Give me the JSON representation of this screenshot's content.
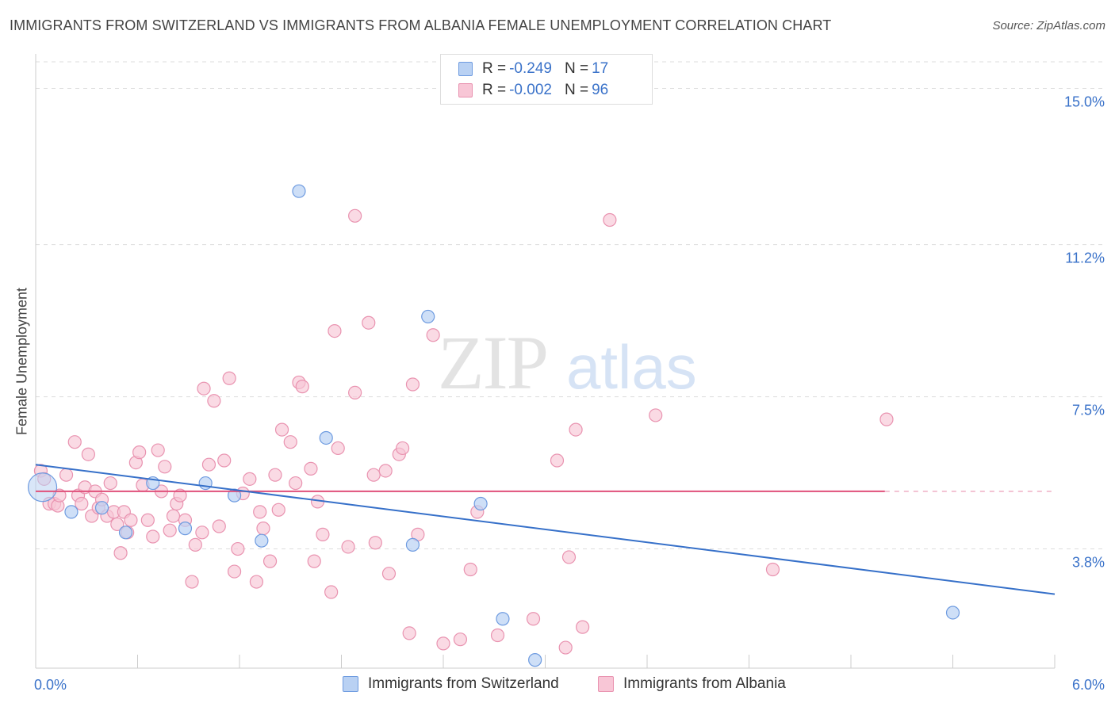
{
  "title": "IMMIGRANTS FROM SWITZERLAND VS IMMIGRANTS FROM ALBANIA FEMALE UNEMPLOYMENT CORRELATION CHART",
  "source": "Source: ZipAtlas.com",
  "watermark": {
    "zip": "ZIP",
    "atlas": "atlas"
  },
  "legend": {
    "series1": {
      "r_label": "R =",
      "r_value": "-0.249",
      "n_label": "N =",
      "n_value": "17"
    },
    "series2": {
      "r_label": "R =",
      "r_value": "-0.002",
      "n_label": "N =",
      "n_value": "96"
    }
  },
  "colors": {
    "switzerland_fill": "#b9d1f3",
    "switzerland_stroke": "#6e9be0",
    "switzerland_line": "#3670c9",
    "albania_fill": "#f8c6d6",
    "albania_stroke": "#e993b0",
    "albania_line": "#e0507a",
    "tick_label": "#3a72c9",
    "grid": "#dddddd"
  },
  "chart_data": {
    "type": "scatter",
    "title": "IMMIGRANTS FROM SWITZERLAND VS IMMIGRANTS FROM ALBANIA FEMALE UNEMPLOYMENT CORRELATION CHART",
    "xlabel": "",
    "ylabel": "Female Unemployment",
    "xlim": [
      0,
      6
    ],
    "ylim": [
      0.9,
      15.8
    ],
    "x_tick_labels": [
      {
        "value": 0,
        "label": "0.0%"
      },
      {
        "value": 6,
        "label": "6.0%"
      }
    ],
    "y_ticks": [
      {
        "value": 3.8,
        "label": "3.8%"
      },
      {
        "value": 7.5,
        "label": "7.5%"
      },
      {
        "value": 11.2,
        "label": "11.2%"
      },
      {
        "value": 15.0,
        "label": "15.0%"
      }
    ],
    "x_minor_ticks": [
      0.6,
      1.2,
      1.8,
      2.4,
      3.0,
      3.6,
      4.2,
      4.8,
      5.4,
      6.0
    ],
    "grid": true,
    "series": [
      {
        "name": "Immigrants from Switzerland",
        "r": -0.249,
        "n": 17,
        "trend": {
          "x": [
            0,
            6
          ],
          "y": [
            5.85,
            2.7
          ]
        },
        "points": [
          {
            "x": 0.04,
            "y": 5.3,
            "big": true
          },
          {
            "x": 0.21,
            "y": 4.7
          },
          {
            "x": 0.39,
            "y": 4.8
          },
          {
            "x": 0.53,
            "y": 4.2
          },
          {
            "x": 0.69,
            "y": 5.4
          },
          {
            "x": 0.88,
            "y": 4.3
          },
          {
            "x": 1.0,
            "y": 5.4
          },
          {
            "x": 1.17,
            "y": 5.1
          },
          {
            "x": 1.33,
            "y": 4.0
          },
          {
            "x": 1.55,
            "y": 12.5
          },
          {
            "x": 1.71,
            "y": 6.5
          },
          {
            "x": 2.22,
            "y": 3.9
          },
          {
            "x": 2.31,
            "y": 9.45
          },
          {
            "x": 2.62,
            "y": 4.9
          },
          {
            "x": 2.75,
            "y": 2.1
          },
          {
            "x": 2.94,
            "y": 1.1
          },
          {
            "x": 5.4,
            "y": 2.25
          }
        ]
      },
      {
        "name": "Immigrants from Albania",
        "r": -0.002,
        "n": 96,
        "trend": {
          "x": [
            0,
            5.0
          ],
          "y": [
            5.2,
            5.2
          ]
        },
        "dashed_extension": {
          "x": [
            5.0,
            6.0
          ],
          "y": [
            5.2,
            5.2
          ]
        },
        "points": [
          {
            "x": 0.03,
            "y": 5.7
          },
          {
            "x": 0.05,
            "y": 5.5
          },
          {
            "x": 0.08,
            "y": 4.9
          },
          {
            "x": 0.11,
            "y": 4.9
          },
          {
            "x": 0.13,
            "y": 4.85
          },
          {
            "x": 0.14,
            "y": 5.1
          },
          {
            "x": 0.18,
            "y": 5.6
          },
          {
            "x": 0.23,
            "y": 6.4
          },
          {
            "x": 0.25,
            "y": 5.1
          },
          {
            "x": 0.27,
            "y": 4.9
          },
          {
            "x": 0.29,
            "y": 5.3
          },
          {
            "x": 0.31,
            "y": 6.1
          },
          {
            "x": 0.33,
            "y": 4.6
          },
          {
            "x": 0.35,
            "y": 5.2
          },
          {
            "x": 0.37,
            "y": 4.8
          },
          {
            "x": 0.39,
            "y": 5.0
          },
          {
            "x": 0.42,
            "y": 4.6
          },
          {
            "x": 0.44,
            "y": 5.4
          },
          {
            "x": 0.46,
            "y": 4.7
          },
          {
            "x": 0.48,
            "y": 4.4
          },
          {
            "x": 0.5,
            "y": 3.7
          },
          {
            "x": 0.52,
            "y": 4.7
          },
          {
            "x": 0.54,
            "y": 4.2
          },
          {
            "x": 0.56,
            "y": 4.5
          },
          {
            "x": 0.59,
            "y": 5.9
          },
          {
            "x": 0.61,
            "y": 6.15
          },
          {
            "x": 0.63,
            "y": 5.35
          },
          {
            "x": 0.66,
            "y": 4.5
          },
          {
            "x": 0.69,
            "y": 4.1
          },
          {
            "x": 0.72,
            "y": 6.2
          },
          {
            "x": 0.74,
            "y": 5.2
          },
          {
            "x": 0.76,
            "y": 5.8
          },
          {
            "x": 0.79,
            "y": 4.25
          },
          {
            "x": 0.81,
            "y": 4.6
          },
          {
            "x": 0.83,
            "y": 4.9
          },
          {
            "x": 0.85,
            "y": 5.1
          },
          {
            "x": 0.88,
            "y": 4.5
          },
          {
            "x": 0.92,
            "y": 3.0
          },
          {
            "x": 0.94,
            "y": 3.9
          },
          {
            "x": 0.98,
            "y": 4.2
          },
          {
            "x": 0.99,
            "y": 7.7
          },
          {
            "x": 1.02,
            "y": 5.85
          },
          {
            "x": 1.05,
            "y": 7.4
          },
          {
            "x": 1.08,
            "y": 4.35
          },
          {
            "x": 1.11,
            "y": 5.95
          },
          {
            "x": 1.14,
            "y": 7.95
          },
          {
            "x": 1.17,
            "y": 3.25
          },
          {
            "x": 1.19,
            "y": 3.8
          },
          {
            "x": 1.22,
            "y": 5.15
          },
          {
            "x": 1.26,
            "y": 5.5
          },
          {
            "x": 1.3,
            "y": 3.0
          },
          {
            "x": 1.32,
            "y": 4.7
          },
          {
            "x": 1.34,
            "y": 4.3
          },
          {
            "x": 1.38,
            "y": 3.5
          },
          {
            "x": 1.41,
            "y": 5.6
          },
          {
            "x": 1.43,
            "y": 4.75
          },
          {
            "x": 1.45,
            "y": 6.7
          },
          {
            "x": 1.5,
            "y": 6.4
          },
          {
            "x": 1.53,
            "y": 5.4
          },
          {
            "x": 1.55,
            "y": 7.85
          },
          {
            "x": 1.57,
            "y": 7.75
          },
          {
            "x": 1.62,
            "y": 5.75
          },
          {
            "x": 1.64,
            "y": 3.5
          },
          {
            "x": 1.66,
            "y": 4.95
          },
          {
            "x": 1.69,
            "y": 4.15
          },
          {
            "x": 1.74,
            "y": 2.75
          },
          {
            "x": 1.76,
            "y": 9.1
          },
          {
            "x": 1.78,
            "y": 6.25
          },
          {
            "x": 1.84,
            "y": 3.85
          },
          {
            "x": 1.88,
            "y": 7.6
          },
          {
            "x": 1.88,
            "y": 11.9
          },
          {
            "x": 1.96,
            "y": 9.3
          },
          {
            "x": 1.99,
            "y": 5.6
          },
          {
            "x": 2.0,
            "y": 3.95
          },
          {
            "x": 2.06,
            "y": 5.7
          },
          {
            "x": 2.08,
            "y": 3.2
          },
          {
            "x": 2.14,
            "y": 6.1
          },
          {
            "x": 2.16,
            "y": 6.25
          },
          {
            "x": 2.2,
            "y": 1.75
          },
          {
            "x": 2.22,
            "y": 7.8
          },
          {
            "x": 2.25,
            "y": 4.15
          },
          {
            "x": 2.34,
            "y": 9.0
          },
          {
            "x": 2.4,
            "y": 1.5
          },
          {
            "x": 2.5,
            "y": 1.6
          },
          {
            "x": 2.56,
            "y": 3.3
          },
          {
            "x": 2.6,
            "y": 4.7
          },
          {
            "x": 2.72,
            "y": 1.7
          },
          {
            "x": 2.93,
            "y": 2.1
          },
          {
            "x": 3.07,
            "y": 5.95
          },
          {
            "x": 3.12,
            "y": 1.4
          },
          {
            "x": 3.14,
            "y": 3.6
          },
          {
            "x": 3.18,
            "y": 6.7
          },
          {
            "x": 3.22,
            "y": 1.9
          },
          {
            "x": 3.38,
            "y": 11.8
          },
          {
            "x": 3.65,
            "y": 7.05
          },
          {
            "x": 4.34,
            "y": 3.3
          },
          {
            "x": 5.01,
            "y": 6.95
          }
        ]
      }
    ]
  },
  "bottom_legend": {
    "switzerland": "Immigrants from Switzerland",
    "albania": "Immigrants from Albania"
  }
}
